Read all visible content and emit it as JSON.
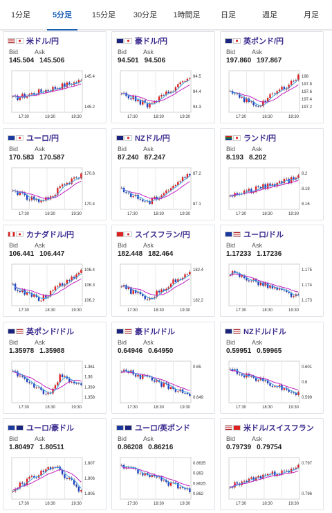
{
  "tabs": [
    {
      "label": "1分足",
      "active": false
    },
    {
      "label": "5分足",
      "active": true
    },
    {
      "label": "15分足",
      "active": false
    },
    {
      "label": "30分足",
      "active": false
    },
    {
      "label": "1時間足",
      "active": false
    },
    {
      "label": "日足",
      "active": false
    },
    {
      "label": "週足",
      "active": false
    },
    {
      "label": "月足",
      "active": false
    }
  ],
  "labels": {
    "bid": "Bid",
    "ask": "Ask"
  },
  "colors": {
    "up": "#e02020",
    "down": "#2040c0",
    "ma": "#c020c0",
    "ma2": "#40a0e0",
    "accent": "#1a5fb4"
  },
  "pairs": [
    {
      "name": "米ドル/円",
      "bid": "145.504",
      "ask": "145.506",
      "flags": [
        "us",
        "jp"
      ],
      "trend": "up",
      "yticks": [
        "145.4",
        "145.2"
      ],
      "xticks": [
        "17:30",
        "18:30",
        "19:30"
      ]
    },
    {
      "name": "豪ドル/円",
      "bid": "94.501",
      "ask": "94.506",
      "flags": [
        "au",
        "jp"
      ],
      "trend": "vup",
      "yticks": [
        "94.5",
        "94.4",
        "94.3"
      ],
      "xticks": [
        "17:30",
        "18:30",
        "19:30"
      ]
    },
    {
      "name": "英ポンド/円",
      "bid": "197.860",
      "ask": "197.867",
      "flags": [
        "gb",
        "jp"
      ],
      "trend": "vup",
      "yticks": [
        "198",
        "197.8",
        "197.6",
        "197.4",
        "197.2"
      ],
      "xticks": [
        "17:30",
        "18:30",
        "19:30"
      ]
    },
    {
      "name": "ユーロ/円",
      "bid": "170.583",
      "ask": "170.587",
      "flags": [
        "eu",
        "jp"
      ],
      "trend": "vup",
      "yticks": [
        "170.6",
        "170.4"
      ],
      "xticks": [
        "17:30",
        "18:30",
        "19:30"
      ]
    },
    {
      "name": "NZドル/円",
      "bid": "87.240",
      "ask": "87.247",
      "flags": [
        "nz",
        "jp"
      ],
      "trend": "vup",
      "yticks": [
        "87.2",
        "87.1"
      ],
      "xticks": [
        "17:30",
        "18:30",
        "19:30"
      ]
    },
    {
      "name": "ランド/円",
      "bid": "8.193",
      "ask": "8.202",
      "flags": [
        "za",
        "jp"
      ],
      "trend": "up",
      "yticks": [
        "8.2",
        "8.18",
        "8.16"
      ],
      "xticks": [
        "17:30",
        "18:30",
        "19:30"
      ]
    },
    {
      "name": "カナダドル/円",
      "bid": "106.441",
      "ask": "106.447",
      "flags": [
        "ca",
        "jp"
      ],
      "trend": "vup",
      "yticks": [
        "106.4",
        "106.3",
        "106.2"
      ],
      "xticks": [
        "17:30",
        "18:30",
        "19:30"
      ]
    },
    {
      "name": "スイスフラン/円",
      "bid": "182.448",
      "ask": "182.464",
      "flags": [
        "ch",
        "jp"
      ],
      "trend": "vup",
      "yticks": [
        "182.4",
        "182.2"
      ],
      "xticks": [
        "17:30",
        "18:30",
        "19:30"
      ]
    },
    {
      "name": "ユーロ/ドル",
      "bid": "1.17233",
      "ask": "1.17236",
      "flags": [
        "eu",
        "us"
      ],
      "trend": "down",
      "yticks": [
        "1.175",
        "1.174",
        "1.173"
      ],
      "xticks": [
        "17:30",
        "18:30",
        "19:30"
      ]
    },
    {
      "name": "英ポンド/ドル",
      "bid": "1.35978",
      "ask": "1.35988",
      "flags": [
        "gb",
        "us"
      ],
      "trend": "dip",
      "yticks": [
        "1.361",
        "1.36",
        "1.359",
        "1.358"
      ],
      "xticks": [
        "17:30",
        "18:30",
        "19:30"
      ]
    },
    {
      "name": "豪ドル/ドル",
      "bid": "0.64946",
      "ask": "0.64950",
      "flags": [
        "au",
        "us"
      ],
      "trend": "down",
      "yticks": [
        "0.65",
        "0.649"
      ],
      "xticks": [
        "17:30",
        "18:30",
        "19:30"
      ]
    },
    {
      "name": "NZドル/ドル",
      "bid": "0.59951",
      "ask": "0.59965",
      "flags": [
        "nz",
        "us"
      ],
      "trend": "down",
      "yticks": [
        "0.601",
        "0.6",
        "0.599"
      ],
      "xticks": [
        "17:30",
        "18:30",
        "19:30"
      ]
    },
    {
      "name": "ユーロ/豪ドル",
      "bid": "1.80497",
      "ask": "1.80511",
      "flags": [
        "eu",
        "au"
      ],
      "trend": "hump",
      "yticks": [
        "1.807",
        "1.806",
        "1.805"
      ],
      "xticks": [
        "17:30",
        "18:30",
        "19:30"
      ]
    },
    {
      "name": "ユーロ/英ポンド",
      "bid": "0.86208",
      "ask": "0.86216",
      "flags": [
        "eu",
        "gb"
      ],
      "trend": "down",
      "yticks": [
        "0.8635",
        "0.863",
        "0.8625",
        "0.862"
      ],
      "xticks": [
        "17:30",
        "18:30",
        "19:30"
      ]
    },
    {
      "name": "米ドル/スイスフラン",
      "bid": "0.79739",
      "ask": "0.79754",
      "flags": [
        "us",
        "ch"
      ],
      "trend": "up",
      "yticks": [
        "0.797",
        "0.796"
      ],
      "xticks": [
        "17:30",
        "18:30",
        "19:30"
      ]
    }
  ]
}
